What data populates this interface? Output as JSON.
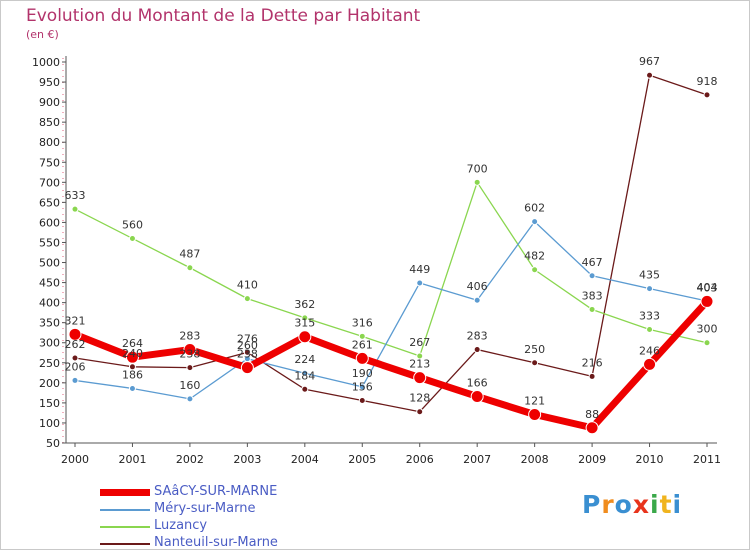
{
  "title": "Evolution du Montant de la Dette par Habitant",
  "unit_label": "(en €)",
  "logo": {
    "text": "Proxiti",
    "letters": [
      "P",
      "r",
      "o",
      "x",
      "i",
      "t",
      "i"
    ],
    "colors": [
      "#3a8fd1",
      "#f08c1e",
      "#3a8fd1",
      "#e8341c",
      "#3aa84a",
      "#f0b41e",
      "#3a8fd1"
    ]
  },
  "chart_data": {
    "type": "line",
    "x": [
      "2000",
      "2001",
      "2002",
      "2003",
      "2004",
      "2005",
      "2006",
      "2007",
      "2008",
      "2009",
      "2010",
      "2011"
    ],
    "yticks": [
      50,
      100,
      150,
      200,
      250,
      300,
      350,
      400,
      450,
      500,
      550,
      600,
      650,
      700,
      750,
      800,
      850,
      900,
      950,
      1000
    ],
    "ylim": [
      50,
      1000
    ],
    "grid": false,
    "legend_position": "bottom-left",
    "series": [
      {
        "name": "Nanteuil-sur-Marne",
        "color": "#6b1a1a",
        "width": 1.3,
        "marker": 3,
        "values": [
          262,
          240,
          238,
          276,
          184,
          156,
          128,
          283,
          250,
          216,
          967,
          918
        ]
      },
      {
        "name": "Luzancy",
        "color": "#8ad64f",
        "width": 1.3,
        "marker": 3,
        "values": [
          633,
          560,
          487,
          410,
          362,
          316,
          267,
          700,
          482,
          383,
          333,
          300
        ]
      },
      {
        "name": "Méry-sur-Marne",
        "color": "#5b9bd1",
        "width": 1.3,
        "marker": 3,
        "values": [
          206,
          186,
          160,
          260,
          224,
          190,
          449,
          406,
          602,
          467,
          435,
          404
        ]
      },
      {
        "name": "SAâCY-SUR-MARNE",
        "color": "#ee0000",
        "width": 7,
        "marker": 6,
        "values": [
          321,
          264,
          283,
          238,
          315,
          261,
          213,
          166,
          121,
          88,
          246,
          403
        ]
      }
    ],
    "data_labels": [
      {
        "series": "Luzancy",
        "labels": [
          "633",
          "560",
          "487",
          "410",
          "362",
          "316",
          "267",
          "700",
          "482",
          "383",
          "333",
          "300"
        ]
      },
      {
        "series": "Méry-sur-Marne",
        "labels": [
          "206",
          "186",
          "160",
          "260",
          "224",
          "190",
          "449",
          "406",
          "602",
          "467",
          "435",
          "404"
        ]
      },
      {
        "series": "Nanteuil-sur-Marne",
        "labels": [
          "262",
          "240",
          "238",
          "276",
          "184",
          "156",
          "128",
          "283",
          "250",
          "216",
          "967",
          "918"
        ]
      },
      {
        "series": "SAâCY-SUR-MARNE",
        "labels": [
          "321",
          "264",
          "283",
          "238",
          "315",
          "261",
          "213",
          "166",
          "121",
          "88",
          "246",
          "403"
        ]
      }
    ]
  }
}
